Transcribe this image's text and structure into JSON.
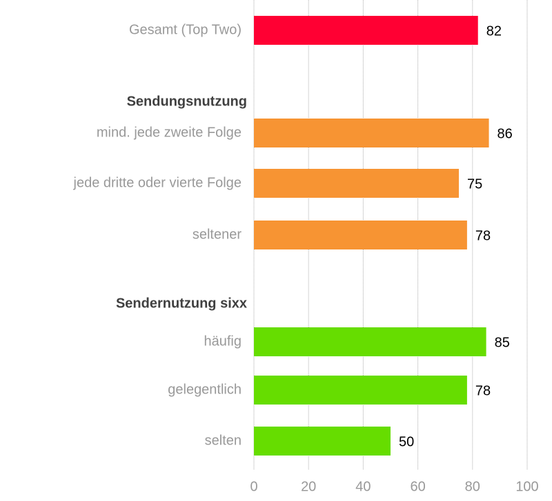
{
  "chart_data": {
    "type": "hbar",
    "categories": [
      "Gesamt (Top Two)",
      "Sendungsnutzung",
      "mind. jede zweite Folge",
      "jede dritte oder vierte Folge",
      "seltener",
      "Sendernutzung sixx",
      "häufig",
      "gelegentlich",
      "selten"
    ],
    "values": [
      82,
      null,
      86,
      75,
      78,
      null,
      85,
      78,
      50
    ],
    "colors": [
      "#ff0033",
      null,
      "#f79433",
      "#f79433",
      "#f79433",
      null,
      "#66dd00",
      "#66dd00",
      "#66dd00"
    ],
    "xlim": [
      0,
      100
    ],
    "xticks": [
      0,
      20,
      40,
      60,
      80,
      100
    ],
    "grid": true
  }
}
